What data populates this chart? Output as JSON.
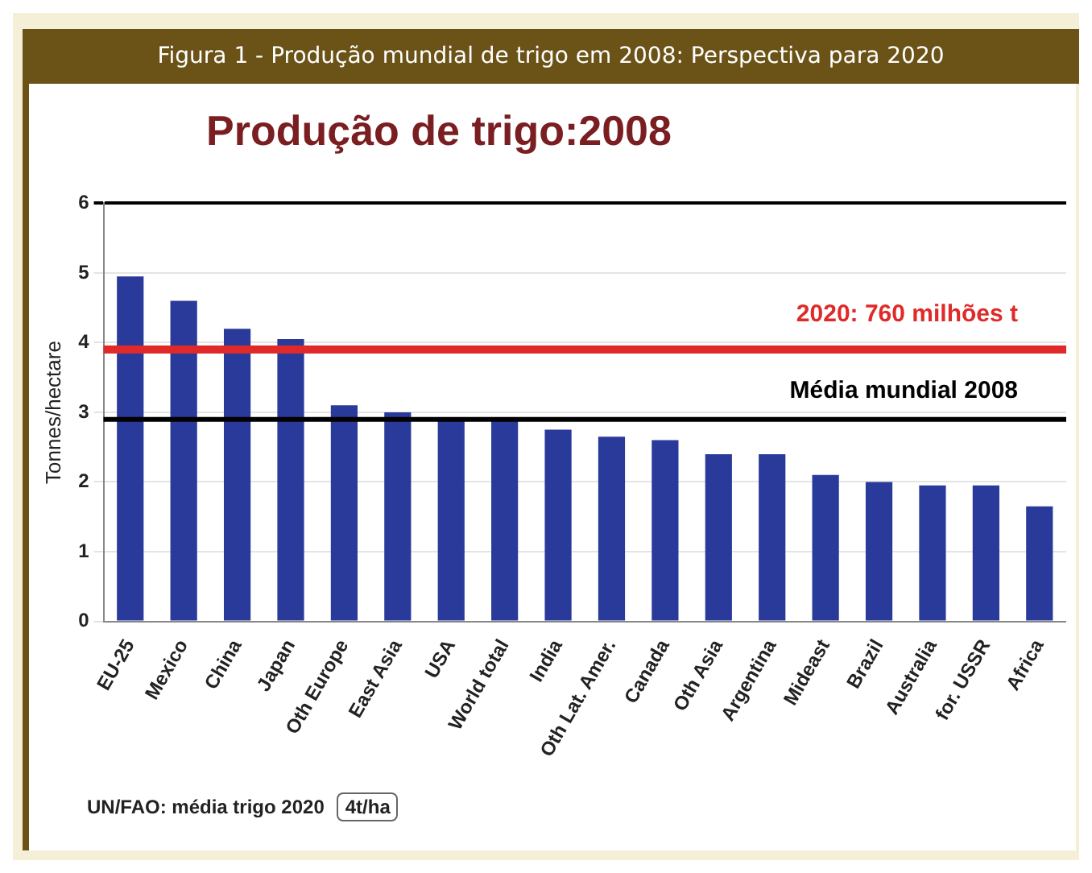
{
  "chart_data": {
    "type": "bar",
    "title": "Figura 1 - Produção mundial de trigo em 2008: Perspectiva para 2020",
    "subtitle": "Produção de trigo:2008",
    "ylabel": "Tonnes/hectare",
    "categories": [
      "EU-25",
      "Mexico",
      "China",
      "Japan",
      "Oth Europe",
      "East Asia",
      "USA",
      "World total",
      "India",
      "Oth Lat. Amer.",
      "Canada",
      "Oth Asia",
      "Argentina",
      "Mideast",
      "Brazil",
      "Australia",
      "for. USSR",
      "Africa"
    ],
    "values": [
      4.95,
      4.6,
      4.2,
      4.05,
      3.1,
      3.0,
      2.9,
      2.9,
      2.75,
      2.65,
      2.6,
      2.4,
      2.4,
      2.1,
      2.0,
      1.95,
      1.95,
      1.65
    ],
    "color": "#2a3a9a",
    "ylim": [
      0,
      6
    ],
    "yticks": [
      0,
      1,
      2,
      3,
      4,
      5,
      6
    ],
    "grid": "y",
    "legend": false,
    "ref_lines": [
      {
        "axis": "y",
        "value": 3.9,
        "color": "#e02a2a"
      },
      {
        "axis": "y",
        "value": 2.9,
        "label": "Média mundial 2008",
        "color": "#000000"
      }
    ],
    "annotations": [
      {
        "text": "2020: 760 milhões t",
        "y": 3.9
      },
      "UN/FAO: média trigo 2020",
      "4t/ha"
    ]
  }
}
